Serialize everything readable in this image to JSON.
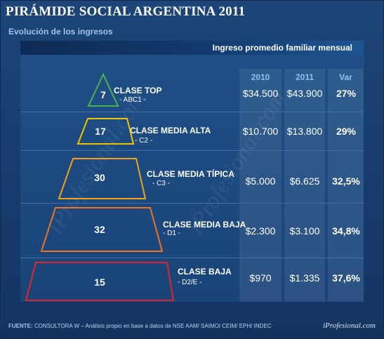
{
  "title": "PIRÁMIDE SOCIAL ARGENTINA 2011",
  "subtitle": "Evolución de los ingresos",
  "ingreso_label": "Ingreso promedio familiar mensual",
  "columns": [
    "2010",
    "2011",
    "Var"
  ],
  "footer": {
    "fuente_label": "FUENTE:",
    "fuente_text": " CONSULTORA W – Análisis propio en base a datos de NSE AAM/ SAIMO/ CEIM/ EPH/ INDEC",
    "brand": "iProfesional.com"
  },
  "watermark": "iProfesional.com",
  "chart_data": {
    "type": "table",
    "columns": [
      "2010",
      "2011",
      "Var"
    ],
    "rows": [
      {
        "share": "7",
        "name": "CLASE TOP",
        "code": "- ABC1 -",
        "v2010": "$34.500",
        "v2011": "$43.900",
        "var": "27%",
        "color": "#4caf50"
      },
      {
        "share": "17",
        "name": "CLASE MEDIA ALTA",
        "code": "- C2 -",
        "v2010": "$10.700",
        "v2011": "$13.800",
        "var": "29%",
        "color": "#f2c200"
      },
      {
        "share": "30",
        "name": "CLASE MEDIA TÍPICA",
        "code": "- C3 -",
        "v2010": "$5.000",
        "v2011": "$6.625",
        "var": "32,5%",
        "color": "#f0a21c"
      },
      {
        "share": "32",
        "name": "CLASE MEDIA BAJA",
        "code": "- D1 -",
        "v2010": "$2.300",
        "v2011": "$3.100",
        "var": "34,8%",
        "color": "#ea7422"
      },
      {
        "share": "15",
        "name": "CLASE BAJA",
        "code": "- D2/E -",
        "v2010": "$970",
        "v2011": "$1.335",
        "var": "37,6%",
        "color": "#e0242b"
      }
    ]
  }
}
